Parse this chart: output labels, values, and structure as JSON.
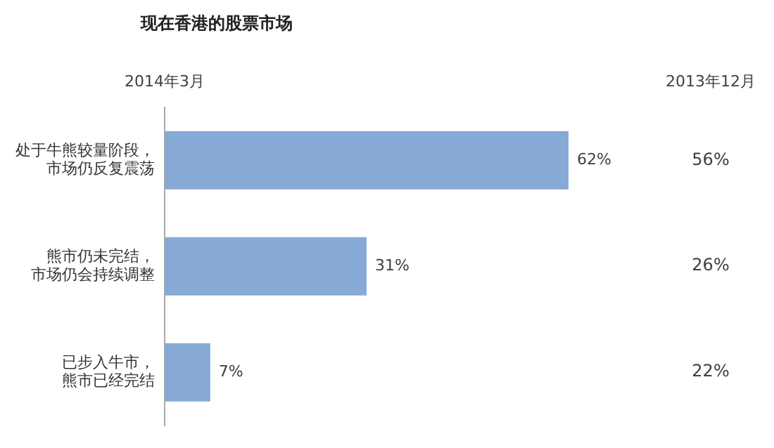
{
  "chart_data": {
    "type": "bar",
    "orientation": "horizontal",
    "title": "现在香港的股票市场",
    "categories": [
      "处于牛熊较量阶段，市场仍反复震荡",
      "熊市仍未完结，市场仍会持续调整",
      "已步入牛市，熊市已经完结"
    ],
    "values": [
      62,
      31,
      7
    ],
    "color": "#87a9d5",
    "value_labels": [
      "62%",
      "31%",
      "7%"
    ],
    "tick_labels": "y",
    "grid": false,
    "legend": false,
    "annotations": [
      "2014年3月",
      "2013年12月",
      "56%",
      "26%",
      "22%"
    ]
  }
}
